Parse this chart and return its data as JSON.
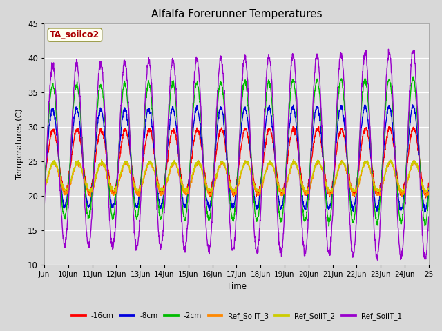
{
  "title": "Alfalfa Forerunner Temperatures",
  "xlabel": "Time",
  "ylabel": "Temperatures (C)",
  "ylim": [
    10,
    45
  ],
  "xlim": [
    0,
    16
  ],
  "xtick_labels": [
    "Jun",
    "10Jun",
    "11Jun",
    "12Jun",
    "13Jun",
    "14Jun",
    "15Jun",
    "16Jun",
    "17Jun",
    "18Jun",
    "19Jun",
    "20Jun",
    "21Jun",
    "22Jun",
    "23Jun",
    "24Jun",
    "25"
  ],
  "xtick_positions": [
    0,
    1,
    2,
    3,
    4,
    5,
    6,
    7,
    8,
    9,
    10,
    11,
    12,
    13,
    14,
    15,
    16
  ],
  "ytick_positions": [
    10,
    15,
    20,
    25,
    30,
    35,
    40,
    45
  ],
  "fig_bg": "#d8d8d8",
  "plot_bg": "#e0e0e0",
  "series": {
    "neg16cm": {
      "color": "#ff0000",
      "label": "-16cm"
    },
    "neg8cm": {
      "color": "#0000dd",
      "label": "-8cm"
    },
    "neg2cm": {
      "color": "#00bb00",
      "label": "-2cm"
    },
    "Ref_SoilT_3": {
      "color": "#ff8800",
      "label": "Ref_SoilT_3"
    },
    "Ref_SoilT_2": {
      "color": "#cccc00",
      "label": "Ref_SoilT_2"
    },
    "Ref_SoilT_1": {
      "color": "#9900cc",
      "label": "Ref_SoilT_1"
    }
  },
  "annotation_text": "TA_soilco2",
  "annotation_color": "#aa0000",
  "annotation_bg": "#fffff0",
  "annotation_border": "#999944"
}
